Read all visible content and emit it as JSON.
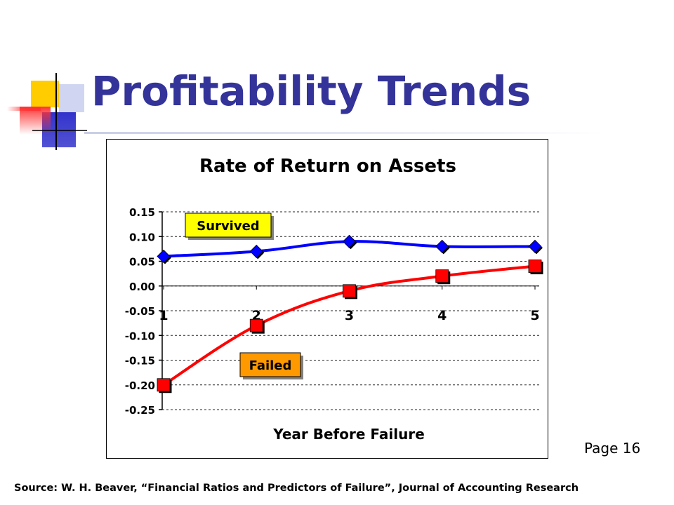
{
  "slide": {
    "title": "Profitability Trends",
    "page_label": "Page 16",
    "source": "Source: W. H. Beaver, “Financial Ratios and Predictors of Failure”, Journal of Accounting Research"
  },
  "colors": {
    "title": "#33339a",
    "survived_line": "#0000ff",
    "survived_marker": "#0000ff",
    "failed_line": "#ff0000",
    "failed_marker": "#ff0000",
    "survived_label_bg": "#ffff00",
    "failed_label_bg": "#ff9900",
    "deco_yellow": "#ffcc00",
    "deco_blue": "#3333cc",
    "deco_red": "#ff3333"
  },
  "chart_data": {
    "type": "line",
    "title": "Rate of Return on Assets",
    "xlabel": "Year Before Failure",
    "ylabel": "",
    "x": [
      1,
      2,
      3,
      4,
      5
    ],
    "x_tick_labels": [
      "1",
      "2",
      "3",
      "4",
      "5"
    ],
    "ylim": [
      -0.25,
      0.15
    ],
    "y_ticks": [
      0.15,
      0.1,
      0.05,
      0.0,
      -0.05,
      -0.1,
      -0.15,
      -0.2,
      -0.25
    ],
    "y_tick_labels": [
      "0.15",
      "0.10",
      "0.05",
      "0.00",
      "-0.05",
      "-0.10",
      "-0.15",
      "-0.20",
      "-0.25"
    ],
    "grid": true,
    "legend": "none",
    "series": [
      {
        "label": "Survived",
        "values": [
          0.06,
          0.07,
          0.09,
          0.08,
          0.08
        ],
        "marker": "diamond",
        "color": "#0000ff"
      },
      {
        "label": "Failed",
        "values": [
          -0.2,
          -0.08,
          -0.01,
          0.02,
          0.04
        ],
        "marker": "square",
        "color": "#ff0000"
      }
    ]
  }
}
